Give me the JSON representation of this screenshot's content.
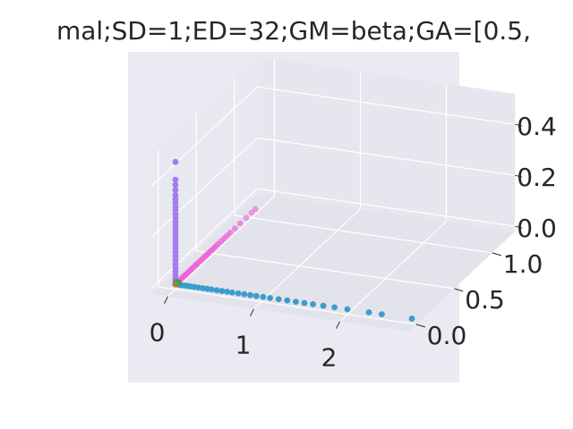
{
  "chart_data": {
    "type": "scatter",
    "projection": "3d",
    "title": "mal;SD=1;ED=32;GM=beta;GA=[0.5,",
    "style": "seaborn-darkgrid",
    "grid": true,
    "background_color": "#eaeaf2",
    "axes": {
      "x": {
        "ticks": [
          0,
          1,
          2
        ],
        "tick_labels": [
          "0",
          "1",
          "2"
        ],
        "range": [
          -0.2,
          2.8
        ]
      },
      "y": {
        "ticks": [
          0.0,
          0.5,
          1.0
        ],
        "tick_labels": [
          "0.0",
          "0.5",
          "1.0"
        ],
        "range": [
          -0.1,
          1.3
        ]
      },
      "z": {
        "ticks": [
          0.0,
          0.2,
          0.4
        ],
        "tick_labels": [
          "0.0",
          "0.2",
          "0.4"
        ],
        "range": [
          -0.02,
          0.52
        ]
      }
    },
    "series": [
      {
        "color": "#3b9dcc",
        "points": [
          [
            0.0,
            0,
            0
          ],
          [
            0.03,
            0,
            0
          ],
          [
            0.06,
            0,
            0
          ],
          [
            0.1,
            0,
            0
          ],
          [
            0.14,
            0,
            0
          ],
          [
            0.18,
            0,
            0
          ],
          [
            0.22,
            0,
            0
          ],
          [
            0.27,
            0,
            0
          ],
          [
            0.32,
            0,
            0
          ],
          [
            0.37,
            0,
            0
          ],
          [
            0.42,
            0,
            0
          ],
          [
            0.48,
            0,
            0
          ],
          [
            0.54,
            0,
            0
          ],
          [
            0.6,
            0,
            0
          ],
          [
            0.66,
            0,
            0
          ],
          [
            0.73,
            0,
            0
          ],
          [
            0.8,
            0,
            0
          ],
          [
            0.87,
            0,
            0
          ],
          [
            0.94,
            0,
            0
          ],
          [
            1.02,
            0,
            0
          ],
          [
            1.1,
            0,
            0
          ],
          [
            1.2,
            0,
            0
          ],
          [
            1.3,
            0,
            0
          ],
          [
            1.4,
            0,
            0
          ],
          [
            1.5,
            0,
            0
          ],
          [
            1.6,
            0,
            0
          ],
          [
            1.72,
            0,
            0
          ],
          [
            1.85,
            0,
            0
          ],
          [
            2.0,
            0,
            0
          ],
          [
            2.25,
            0,
            0
          ],
          [
            2.4,
            0,
            0
          ],
          [
            2.75,
            0,
            0
          ]
        ]
      },
      {
        "color": "#f062d8",
        "points": [
          [
            0,
            0.02,
            0
          ],
          [
            0,
            0.05,
            0
          ],
          [
            0,
            0.08,
            0
          ],
          [
            0,
            0.11,
            0
          ],
          [
            0,
            0.14,
            0
          ],
          [
            0,
            0.17,
            0
          ],
          [
            0,
            0.2,
            0
          ],
          [
            0,
            0.23,
            0
          ],
          [
            0,
            0.26,
            0
          ],
          [
            0,
            0.29,
            0
          ],
          [
            0,
            0.32,
            0
          ],
          [
            0,
            0.35,
            0
          ],
          [
            0,
            0.38,
            0
          ],
          [
            0,
            0.41,
            0
          ],
          [
            0,
            0.44,
            0
          ],
          [
            0,
            0.47,
            0
          ],
          [
            0,
            0.5,
            0
          ],
          [
            0,
            0.53,
            0
          ],
          [
            0,
            0.56,
            0
          ],
          [
            0,
            0.6,
            0
          ],
          [
            0,
            0.64,
            0
          ],
          [
            0,
            0.68,
            0
          ],
          [
            0,
            0.72,
            0
          ],
          [
            0,
            0.78,
            0
          ],
          [
            0,
            0.85,
            0
          ],
          [
            0,
            0.93,
            0
          ],
          [
            0,
            1.0,
            0
          ],
          [
            0,
            1.05,
            0
          ]
        ]
      },
      {
        "color": "#a37cf0",
        "points": [
          [
            0,
            0,
            0.01
          ],
          [
            0,
            0,
            0.02
          ],
          [
            0,
            0,
            0.035
          ],
          [
            0,
            0,
            0.05
          ],
          [
            0,
            0,
            0.065
          ],
          [
            0,
            0,
            0.08
          ],
          [
            0,
            0,
            0.095
          ],
          [
            0,
            0,
            0.11
          ],
          [
            0,
            0,
            0.125
          ],
          [
            0,
            0,
            0.14
          ],
          [
            0,
            0,
            0.155
          ],
          [
            0,
            0,
            0.17
          ],
          [
            0,
            0,
            0.185
          ],
          [
            0,
            0,
            0.2
          ],
          [
            0,
            0,
            0.215
          ],
          [
            0,
            0,
            0.23
          ],
          [
            0,
            0,
            0.245
          ],
          [
            0,
            0,
            0.26
          ],
          [
            0,
            0,
            0.275
          ],
          [
            0,
            0,
            0.29
          ],
          [
            0,
            0,
            0.305
          ],
          [
            0,
            0,
            0.32
          ],
          [
            0,
            0,
            0.335
          ],
          [
            0,
            0,
            0.35
          ],
          [
            0,
            0,
            0.37
          ],
          [
            0,
            0,
            0.39
          ],
          [
            0,
            0,
            0.41
          ],
          [
            0,
            0,
            0.48
          ]
        ]
      },
      {
        "color": "#31a354",
        "points": [
          [
            0.01,
            0,
            0.01
          ],
          [
            0.03,
            0.01,
            0.005
          ]
        ]
      },
      {
        "color": "#b07d2b",
        "points": [
          [
            0,
            0,
            0
          ]
        ]
      }
    ]
  }
}
